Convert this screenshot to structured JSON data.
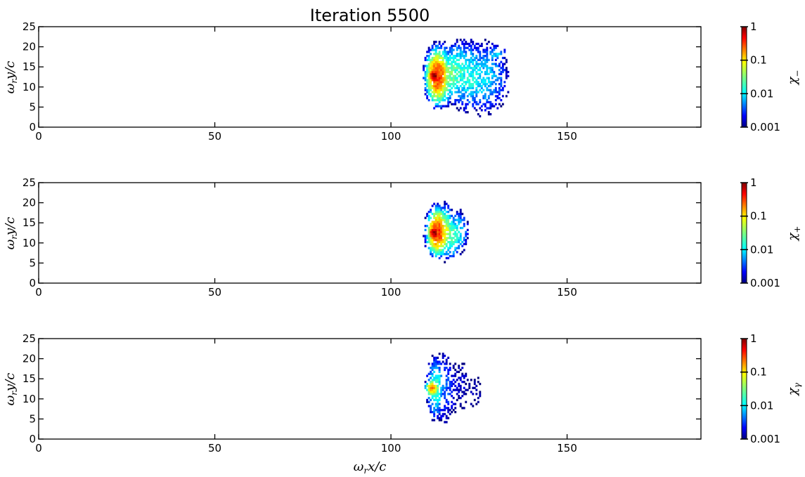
{
  "figure": {
    "title": "Iteration 5500",
    "xlabel": "ω_r x/c",
    "colorbar_ticks": [
      "1",
      "0.1",
      "0.01",
      "0.001"
    ],
    "colormap": [
      "#00007f",
      "#0000ff",
      "#007fff",
      "#00ffff",
      "#7fff7f",
      "#ffff00",
      "#ff7f00",
      "#ff0000",
      "#7f0000"
    ]
  },
  "chart_data": [
    {
      "type": "heatmap",
      "title": "Iteration 5500",
      "xlabel": "",
      "ylabel": "ω_r y/c",
      "xlim": [
        0,
        188
      ],
      "ylim": [
        0,
        25
      ],
      "xticks": [
        "0",
        "50",
        "100",
        "150"
      ],
      "yticks": [
        "0",
        "5",
        "10",
        "15",
        "20",
        "25"
      ],
      "colorbar": {
        "label": "χ_−",
        "scale": "log",
        "range": [
          0.001,
          1
        ]
      },
      "blobs": [
        {
          "x": 112.0,
          "y": 12.5,
          "sx": 0.6,
          "sy": 0.7,
          "value": 1.0
        },
        {
          "x": 113.0,
          "y": 12.5,
          "sx": 1.3,
          "sy": 2.6,
          "value": 0.3
        },
        {
          "x": 114.5,
          "y": 12.5,
          "sx": 1.5,
          "sy": 3.0,
          "value": 0.06
        },
        {
          "x": 116.5,
          "y": 13.0,
          "sx": 2.5,
          "sy": 3.0,
          "value": 0.03
        },
        {
          "x": 119.0,
          "y": 14.0,
          "sx": 2.5,
          "sy": 3.2,
          "value": 0.02
        },
        {
          "x": 122.0,
          "y": 12.5,
          "sx": 3.5,
          "sy": 4.0,
          "value": 0.015
        },
        {
          "x": 126.0,
          "y": 12.0,
          "sx": 3.5,
          "sy": 4.5,
          "value": 0.01
        },
        {
          "x": 129.5,
          "y": 18.0,
          "sx": 1.5,
          "sy": 1.0,
          "value": 0.01
        }
      ]
    },
    {
      "type": "heatmap",
      "xlabel": "",
      "ylabel": "ω_r y/c",
      "xlim": [
        0,
        188
      ],
      "ylim": [
        0,
        25
      ],
      "xticks": [
        "0",
        "50",
        "100",
        "150"
      ],
      "yticks": [
        "0",
        "5",
        "10",
        "15",
        "20",
        "25"
      ],
      "colorbar": {
        "label": "χ_+",
        "scale": "log",
        "range": [
          0.001,
          1
        ]
      },
      "blobs": [
        {
          "x": 112.0,
          "y": 12.3,
          "sx": 0.6,
          "sy": 0.7,
          "value": 1.0
        },
        {
          "x": 113.0,
          "y": 12.5,
          "sx": 1.2,
          "sy": 2.2,
          "value": 0.3
        },
        {
          "x": 114.5,
          "y": 12.5,
          "sx": 1.5,
          "sy": 2.6,
          "value": 0.07
        },
        {
          "x": 116.5,
          "y": 11.5,
          "sx": 1.8,
          "sy": 2.4,
          "value": 0.03
        },
        {
          "x": 118.5,
          "y": 12.5,
          "sx": 1.5,
          "sy": 2.5,
          "value": 0.015
        }
      ]
    },
    {
      "type": "heatmap",
      "xlabel": "ω_r x/c",
      "ylabel": "ω_r y/c",
      "xlim": [
        0,
        188
      ],
      "ylim": [
        0,
        25
      ],
      "xticks": [
        "0",
        "50",
        "100",
        "150"
      ],
      "yticks": [
        "0",
        "5",
        "10",
        "15",
        "20",
        "25"
      ],
      "colorbar": {
        "label": "χ_γ",
        "scale": "log",
        "range": [
          0.001,
          1
        ]
      },
      "blobs": [
        {
          "x": 111.5,
          "y": 12.5,
          "sx": 0.8,
          "sy": 0.9,
          "value": 0.15
        },
        {
          "x": 112.5,
          "y": 12.5,
          "sx": 1.2,
          "sy": 3.5,
          "value": 0.02
        },
        {
          "x": 114.5,
          "y": 12.5,
          "sx": 2.0,
          "sy": 5.0,
          "value": 0.005
        },
        {
          "x": 117.0,
          "y": 12.5,
          "sx": 2.5,
          "sy": 5.5,
          "value": 0.002
        },
        {
          "x": 120.0,
          "y": 13.0,
          "sx": 3.0,
          "sy": 6.5,
          "value": 0.0015
        },
        {
          "x": 123.5,
          "y": 12.0,
          "sx": 3.0,
          "sy": 7.0,
          "value": 0.0012
        }
      ]
    }
  ]
}
